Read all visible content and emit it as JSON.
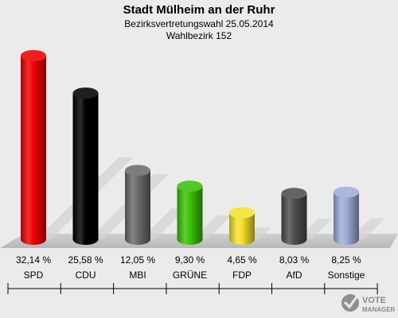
{
  "chart_data": {
    "type": "bar",
    "title": "Stadt Mülheim an der Ruhr",
    "subtitle": "Bezirksvertretungswahl 25.05.2014",
    "subtitle2": "Wahlbezirk 152",
    "unit": "%",
    "categories": [
      "SPD",
      "CDU",
      "MBI",
      "GRÜNE",
      "FDP",
      "AfD",
      "Sonstige"
    ],
    "values": [
      32.14,
      25.58,
      12.05,
      9.3,
      4.65,
      8.03,
      8.25
    ],
    "value_labels": [
      "32,14 %",
      "25,58 %",
      "12,05 %",
      "9,30 %",
      "4,65 %",
      "8,03 %",
      "8,25 %"
    ],
    "colors": [
      "#f00000",
      "#000000",
      "#6b6b6b",
      "#3cc20a",
      "#f6e12a",
      "#4e4e4e",
      "#9fadda"
    ],
    "legend": "none",
    "grid": false
  },
  "logo": {
    "line1": "VOTE",
    "line2": "MANAGER"
  }
}
